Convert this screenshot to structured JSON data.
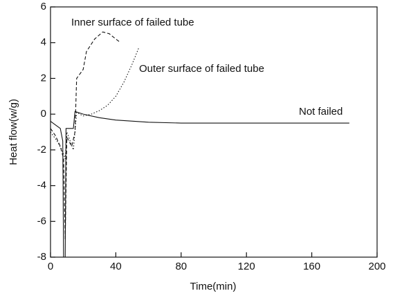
{
  "chart_data": {
    "type": "line",
    "xlabel": "Time(min)",
    "ylabel": "Heat flow(w/g)",
    "xlim": [
      0,
      200
    ],
    "xticks": [
      0,
      40,
      80,
      120,
      160,
      200
    ],
    "ylim": [
      -8,
      6
    ],
    "yticks": [
      -8,
      -6,
      -4,
      -2,
      0,
      2,
      4,
      6
    ],
    "series": [
      {
        "name": "Inner surface of failed tube",
        "color": "#111111",
        "style": "dashed",
        "x": [
          0,
          3,
          6,
          8,
          9,
          10,
          13,
          15,
          16,
          20,
          22,
          27,
          32,
          36,
          40,
          43
        ],
        "values": [
          -0.8,
          -1.2,
          -1.8,
          -2.5,
          -7,
          -1.3,
          -1.8,
          -1.0,
          2.0,
          2.5,
          3.5,
          4.2,
          4.6,
          4.5,
          4.2,
          4.0
        ]
      },
      {
        "name": "Outer surface of failed tube",
        "color": "#111111",
        "style": "dotted",
        "x": [
          0,
          4,
          7,
          9,
          10,
          14,
          16,
          20,
          25,
          30,
          35,
          40,
          45,
          50,
          54
        ],
        "values": [
          -1.0,
          -1.5,
          -2.0,
          -2.5,
          -1.0,
          -2.0,
          0.1,
          -0.1,
          0,
          0.2,
          0.5,
          1.0,
          1.8,
          2.8,
          3.7
        ]
      },
      {
        "name": "Not failed",
        "color": "#111111",
        "style": "solid",
        "x": [
          0,
          3,
          6,
          7.5,
          8,
          9,
          9.5,
          14,
          15,
          20,
          30,
          40,
          60,
          80,
          120,
          183
        ],
        "values": [
          -0.4,
          -0.6,
          -0.8,
          -1.5,
          -8,
          -8,
          -0.8,
          -0.8,
          0.15,
          0,
          -0.2,
          -0.33,
          -0.45,
          -0.5,
          -0.5,
          -0.5
        ]
      }
    ]
  }
}
